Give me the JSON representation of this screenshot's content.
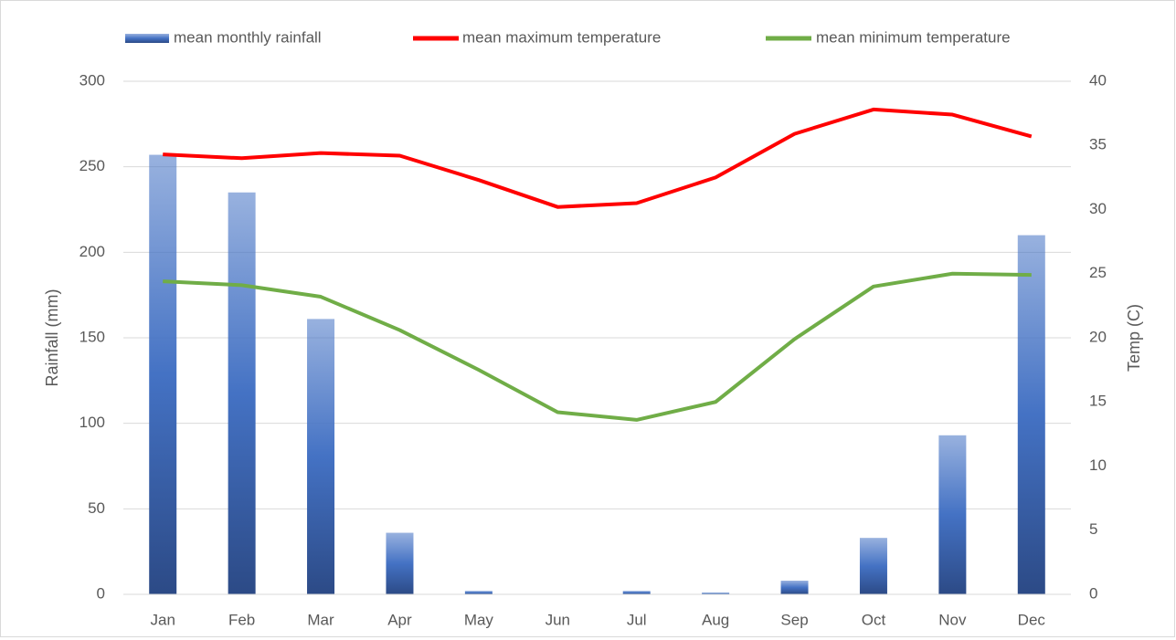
{
  "chart_data": {
    "type": "bar_line",
    "categories": [
      "Jan",
      "Feb",
      "Mar",
      "Apr",
      "May",
      "Jun",
      "Jul",
      "Aug",
      "Sep",
      "Oct",
      "Nov",
      "Dec"
    ],
    "series": [
      {
        "name": "mean monthly rainfall",
        "type": "bar",
        "color": "#4472c4",
        "values": [
          257,
          235,
          161,
          36,
          2,
          0,
          2,
          1,
          8,
          33,
          93,
          210
        ]
      },
      {
        "name": "mean maximum temperature",
        "type": "line",
        "axis": "y2",
        "color": "#ff0000",
        "values": [
          34.3,
          34.0,
          34.4,
          34.2,
          32.3,
          30.2,
          30.5,
          32.5,
          35.9,
          37.8,
          37.4,
          35.7
        ]
      },
      {
        "name": "mean minimum temperature",
        "type": "line",
        "axis": "y2",
        "color": "#70ad47",
        "values": [
          24.4,
          24.1,
          23.2,
          20.6,
          17.5,
          14.2,
          13.6,
          15.0,
          19.9,
          24.0,
          25.0,
          24.9
        ]
      }
    ],
    "ylabel": "Rainfall (mm)",
    "y2label": "Temp (C)",
    "ylim": [
      0,
      300
    ],
    "yticks": [
      0,
      50,
      100,
      150,
      200,
      250,
      300
    ],
    "y2lim": [
      0,
      40
    ],
    "y2ticks": [
      0,
      5,
      10,
      15,
      20,
      25,
      30,
      35,
      40
    ],
    "grid": true,
    "legend": "top"
  }
}
